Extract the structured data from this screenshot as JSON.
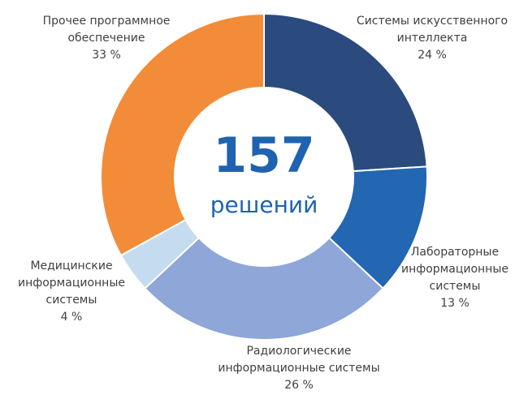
{
  "chart_data": {
    "type": "pie",
    "center": {
      "value": "157",
      "caption": "решений"
    },
    "slices": [
      {
        "lines": [
          "Системы искусственного",
          "интеллекта"
        ],
        "pct": "24 %",
        "value": 24,
        "color": "#2b4b7e"
      },
      {
        "lines": [
          "Лабораторные",
          "информационные",
          "системы"
        ],
        "pct": "13 %",
        "value": 13,
        "color": "#2366b2"
      },
      {
        "lines": [
          "Радиологические",
          "информационные системы"
        ],
        "pct": "26 %",
        "value": 26,
        "color": "#8ea6d8"
      },
      {
        "lines": [
          "Медицинские",
          "информационные",
          "системы"
        ],
        "pct": "4 %",
        "value": 4,
        "color": "#c5dbf0"
      },
      {
        "lines": [
          "Прочее программное",
          "обеспечение"
        ],
        "pct": "33 %",
        "value": 33,
        "color": "#f28c38"
      }
    ]
  }
}
